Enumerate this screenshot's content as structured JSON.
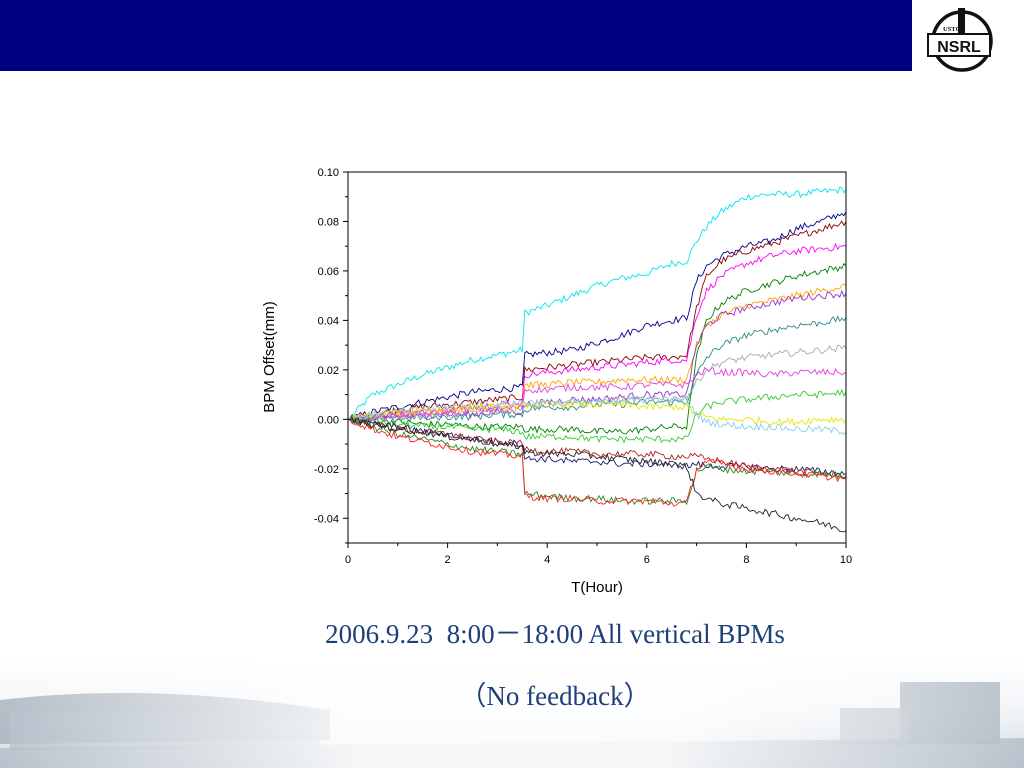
{
  "slide": {
    "caption_line1": "2006.9.23  8:00－18:00 All vertical BPMs",
    "caption_line2": "（No feedback）",
    "logo_text_top": "USTC",
    "logo_text_main": "NSRL",
    "header_color": "#000080",
    "caption_color": "#1f3f7a"
  },
  "chart_data": {
    "type": "line",
    "title": "",
    "xlabel": "T(Hour)",
    "ylabel": "BPM Offset(mm)",
    "xlim": [
      0,
      10
    ],
    "ylim": [
      -0.05,
      0.1
    ],
    "xticks": [
      0,
      2,
      4,
      6,
      8,
      10
    ],
    "xtick_labels": [
      "0",
      "2",
      "4",
      "6",
      "8",
      "10"
    ],
    "yticks": [
      -0.04,
      -0.02,
      0.0,
      0.02,
      0.04,
      0.06,
      0.08,
      0.1
    ],
    "ytick_labels": [
      "-0.04",
      "-0.02",
      "0.00",
      "0.02",
      "0.04",
      "0.06",
      "0.08",
      "0.10"
    ],
    "grid": false,
    "legend": "none",
    "x": [
      0,
      0.5,
      1,
      1.5,
      2,
      2.5,
      3,
      3.5,
      3.55,
      4,
      4.5,
      5,
      5.5,
      6,
      6.5,
      6.8,
      7.0,
      7.2,
      7.5,
      8,
      8.5,
      9,
      9.5,
      10
    ],
    "series": [
      {
        "color": "#00e5ee",
        "values": [
          0.0,
          0.01,
          0.014,
          0.018,
          0.021,
          0.024,
          0.026,
          0.028,
          0.043,
          0.046,
          0.05,
          0.054,
          0.057,
          0.059,
          0.063,
          0.064,
          0.072,
          0.078,
          0.084,
          0.09,
          0.091,
          0.091,
          0.092,
          0.093
        ]
      },
      {
        "color": "#00008b",
        "values": [
          0.0,
          0.003,
          0.005,
          0.007,
          0.009,
          0.011,
          0.012,
          0.013,
          0.026,
          0.027,
          0.028,
          0.031,
          0.034,
          0.038,
          0.04,
          0.041,
          0.056,
          0.062,
          0.066,
          0.07,
          0.072,
          0.077,
          0.08,
          0.084
        ]
      },
      {
        "color": "#8b0000",
        "values": [
          0.0,
          0.002,
          0.004,
          0.005,
          0.006,
          0.007,
          0.008,
          0.009,
          0.02,
          0.021,
          0.022,
          0.023,
          0.024,
          0.025,
          0.025,
          0.026,
          0.045,
          0.058,
          0.064,
          0.068,
          0.071,
          0.074,
          0.077,
          0.08
        ]
      },
      {
        "color": "#ff00ff",
        "values": [
          0.0,
          0.001,
          0.002,
          0.003,
          0.004,
          0.005,
          0.006,
          0.007,
          0.018,
          0.019,
          0.02,
          0.021,
          0.022,
          0.023,
          0.024,
          0.024,
          0.042,
          0.052,
          0.058,
          0.063,
          0.066,
          0.068,
          0.069,
          0.07
        ]
      },
      {
        "color": "#008000",
        "values": [
          0.0,
          0.0,
          -0.001,
          -0.002,
          -0.002,
          -0.003,
          -0.003,
          -0.003,
          -0.004,
          -0.004,
          -0.004,
          -0.005,
          -0.005,
          -0.004,
          -0.003,
          -0.003,
          0.025,
          0.04,
          0.047,
          0.052,
          0.055,
          0.058,
          0.06,
          0.062
        ]
      },
      {
        "color": "#ffa500",
        "values": [
          0.0,
          0.001,
          0.002,
          0.003,
          0.004,
          0.005,
          0.005,
          0.006,
          0.014,
          0.014,
          0.015,
          0.015,
          0.016,
          0.016,
          0.016,
          0.016,
          0.03,
          0.038,
          0.042,
          0.046,
          0.048,
          0.05,
          0.052,
          0.054
        ]
      },
      {
        "color": "#9932cc",
        "values": [
          0.0,
          0.0,
          0.001,
          0.001,
          0.002,
          0.002,
          0.003,
          0.003,
          0.006,
          0.007,
          0.008,
          0.008,
          0.009,
          0.01,
          0.01,
          0.01,
          0.03,
          0.038,
          0.042,
          0.045,
          0.047,
          0.049,
          0.05,
          0.051
        ]
      },
      {
        "color": "#2e8b8b",
        "values": [
          0.0,
          0.0,
          0.0,
          0.001,
          0.001,
          0.001,
          0.002,
          0.002,
          0.004,
          0.005,
          0.005,
          0.006,
          0.006,
          0.007,
          0.007,
          0.007,
          0.018,
          0.025,
          0.03,
          0.034,
          0.036,
          0.038,
          0.039,
          0.041
        ]
      },
      {
        "color": "#aaaaaa",
        "values": [
          0.0,
          0.001,
          0.001,
          0.002,
          0.002,
          0.003,
          0.003,
          0.004,
          0.006,
          0.006,
          0.007,
          0.007,
          0.008,
          0.008,
          0.008,
          0.009,
          0.015,
          0.02,
          0.023,
          0.025,
          0.026,
          0.027,
          0.028,
          0.029
        ]
      },
      {
        "color": "#e040e0",
        "values": [
          0.0,
          0.001,
          0.002,
          0.002,
          0.003,
          0.004,
          0.004,
          0.005,
          0.012,
          0.012,
          0.013,
          0.013,
          0.013,
          0.014,
          0.014,
          0.014,
          0.018,
          0.02,
          0.019,
          0.019,
          0.018,
          0.019,
          0.019,
          0.019
        ]
      },
      {
        "color": "#32cd32",
        "values": [
          0.0,
          -0.001,
          -0.002,
          -0.003,
          -0.003,
          -0.004,
          -0.004,
          -0.005,
          -0.007,
          -0.007,
          -0.007,
          -0.008,
          -0.008,
          -0.008,
          -0.008,
          -0.008,
          0.002,
          0.005,
          0.007,
          0.008,
          0.009,
          0.01,
          0.01,
          0.011
        ]
      },
      {
        "color": "#e6e600",
        "values": [
          0.0,
          0.002,
          0.003,
          0.004,
          0.004,
          0.005,
          0.005,
          0.005,
          0.006,
          0.006,
          0.006,
          0.006,
          0.006,
          0.005,
          0.005,
          0.005,
          0.002,
          0.001,
          0.0,
          0.0,
          -0.001,
          -0.001,
          0.0,
          0.0
        ]
      },
      {
        "color": "#87ceeb",
        "values": [
          0.0,
          0.002,
          0.003,
          0.004,
          0.005,
          0.006,
          0.006,
          0.007,
          0.007,
          0.007,
          0.007,
          0.007,
          0.008,
          0.008,
          0.008,
          0.008,
          0.002,
          -0.001,
          -0.002,
          -0.003,
          -0.003,
          -0.004,
          -0.004,
          -0.005
        ]
      },
      {
        "color": "#191970",
        "values": [
          0.0,
          -0.002,
          -0.003,
          -0.005,
          -0.006,
          -0.008,
          -0.009,
          -0.01,
          -0.016,
          -0.016,
          -0.017,
          -0.017,
          -0.018,
          -0.018,
          -0.018,
          -0.019,
          -0.018,
          -0.019,
          -0.019,
          -0.019,
          -0.02,
          -0.02,
          -0.021,
          -0.022
        ]
      },
      {
        "color": "#b22222",
        "values": [
          0.0,
          -0.002,
          -0.004,
          -0.005,
          -0.006,
          -0.008,
          -0.009,
          -0.01,
          -0.012,
          -0.013,
          -0.013,
          -0.014,
          -0.014,
          -0.014,
          -0.015,
          -0.015,
          -0.015,
          -0.016,
          -0.017,
          -0.019,
          -0.02,
          -0.021,
          -0.022,
          -0.023
        ]
      },
      {
        "color": "#228b22",
        "values": [
          0.0,
          -0.003,
          -0.006,
          -0.008,
          -0.01,
          -0.012,
          -0.013,
          -0.014,
          -0.03,
          -0.031,
          -0.032,
          -0.032,
          -0.033,
          -0.033,
          -0.033,
          -0.033,
          -0.021,
          -0.019,
          -0.02,
          -0.021,
          -0.021,
          -0.022,
          -0.022,
          -0.023
        ]
      },
      {
        "color": "#ff2020",
        "values": [
          0.0,
          -0.004,
          -0.007,
          -0.009,
          -0.011,
          -0.013,
          -0.014,
          -0.015,
          -0.031,
          -0.032,
          -0.032,
          -0.033,
          -0.033,
          -0.033,
          -0.034,
          -0.034,
          -0.02,
          -0.017,
          -0.018,
          -0.02,
          -0.021,
          -0.022,
          -0.023,
          -0.024
        ]
      },
      {
        "color": "#222222",
        "values": [
          0.0,
          -0.002,
          -0.004,
          -0.005,
          -0.007,
          -0.008,
          -0.01,
          -0.011,
          -0.013,
          -0.014,
          -0.014,
          -0.015,
          -0.016,
          -0.017,
          -0.018,
          -0.019,
          -0.03,
          -0.032,
          -0.034,
          -0.036,
          -0.038,
          -0.04,
          -0.042,
          -0.045
        ]
      }
    ]
  }
}
